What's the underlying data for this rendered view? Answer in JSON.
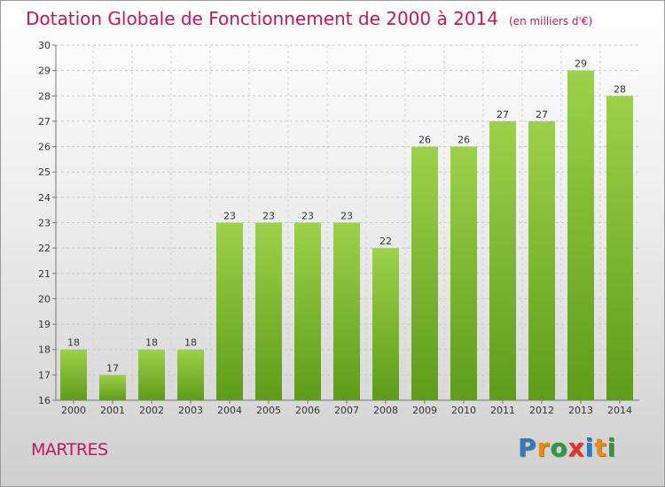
{
  "title": "Dotation Globale de Fonctionnement de 2000 à 2014",
  "subtitle": "(en milliers d'€)",
  "commune": "MARTRES",
  "brand": {
    "letters": [
      "P",
      "r",
      "o",
      "x",
      "i",
      "t",
      "i"
    ],
    "colors": [
      "#2e7cc0",
      "#f08a00",
      "#2e9a3a",
      "#e0312b",
      "#2e7cc0",
      "#f08a00",
      "#2e9a3a"
    ]
  },
  "colors": {
    "bar_top": "#9ed14a",
    "bar_bottom": "#5e9c19",
    "title": "#c2185b"
  },
  "chart_data": {
    "type": "bar",
    "categories": [
      "2000",
      "2001",
      "2002",
      "2003",
      "2004",
      "2005",
      "2006",
      "2007",
      "2008",
      "2009",
      "2010",
      "2011",
      "2012",
      "2013",
      "2014"
    ],
    "values": [
      18,
      17,
      18,
      18,
      23,
      23,
      23,
      23,
      22,
      26,
      26,
      27,
      27,
      29,
      28
    ],
    "ylim": [
      16,
      30
    ],
    "yticks": [
      16,
      17,
      18,
      19,
      20,
      21,
      22,
      23,
      24,
      25,
      26,
      27,
      28,
      29,
      30
    ],
    "grid": true,
    "data_labels": true
  }
}
